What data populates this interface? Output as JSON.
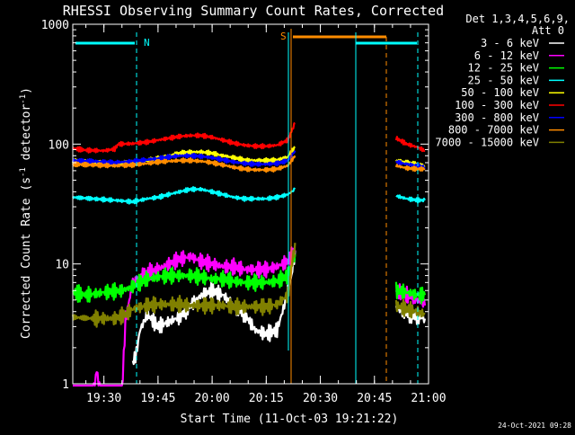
{
  "chart_data": {
    "type": "line",
    "title": "RHESSI Observing Summary Count Rates, Corrected",
    "xlabel": "Start Time (11-Oct-03 19:21:22)",
    "ylabel": "Corrected Count Rate (s⁻¹ detector⁻¹)",
    "ylabel_main": "Corrected Count Rate (s",
    "ylabel_sup1": "-1",
    "ylabel_mid": " detector",
    "ylabel_sup2": "-1",
    "ylabel_end": ")",
    "y_scale": "log",
    "ylim": [
      1,
      1000
    ],
    "xlim": [
      "19:21:22",
      "21:00"
    ],
    "x_tick_labels": [
      "19:30",
      "19:45",
      "20:00",
      "20:15",
      "20:30",
      "20:45",
      "21:00"
    ],
    "y_tick_labels": [
      "1",
      "10",
      "100",
      "1000"
    ],
    "legend_header": [
      "Det 1,3,4,5,6,9,",
      "Att 0"
    ],
    "timestamp": "24-Oct-2021 09:28",
    "markers": [
      {
        "label": "N",
        "time": "19:38"
      },
      {
        "label": "S",
        "time": "20:23"
      }
    ],
    "series": [
      {
        "name": "3 - 6 keV",
        "color": "#ffffff",
        "values": [
          [
            "19:38",
            1.5
          ],
          [
            "19:39",
            1.8
          ],
          [
            "19:40",
            2.8
          ],
          [
            "19:42",
            3.8
          ],
          [
            "19:45",
            3.0
          ],
          [
            "19:48",
            3.3
          ],
          [
            "19:51",
            3.6
          ],
          [
            "19:54",
            4.5
          ],
          [
            "19:57",
            5.5
          ],
          [
            "20:00",
            6.0
          ],
          [
            "20:03",
            5.5
          ],
          [
            "20:06",
            4.5
          ],
          [
            "20:09",
            3.8
          ],
          [
            "20:12",
            2.8
          ],
          [
            "20:15",
            2.6
          ],
          [
            "20:18",
            2.8
          ],
          [
            "20:20",
            4.5
          ],
          [
            "20:22",
            8.0
          ],
          [
            "20:23",
            13.0
          ],
          [
            "20:51",
            4.3
          ],
          [
            "20:54",
            3.8
          ],
          [
            "20:57",
            3.6
          ],
          [
            "20:59",
            3.5
          ]
        ]
      },
      {
        "name": "6 - 12 keV",
        "color": "#ff00ff",
        "values": [
          [
            "19:21:22",
            0.8
          ],
          [
            "19:27",
            0.8
          ],
          [
            "19:28",
            1.3
          ],
          [
            "19:29",
            0.8
          ],
          [
            "19:35",
            0.8
          ],
          [
            "19:36",
            3.5
          ],
          [
            "19:38",
            7.0
          ],
          [
            "19:42",
            8.5
          ],
          [
            "19:45",
            9.0
          ],
          [
            "19:48",
            10.0
          ],
          [
            "19:51",
            11.0
          ],
          [
            "19:54",
            11.5
          ],
          [
            "19:57",
            10.5
          ],
          [
            "20:00",
            10.0
          ],
          [
            "20:03",
            9.5
          ],
          [
            "20:06",
            9.5
          ],
          [
            "20:09",
            9.0
          ],
          [
            "20:12",
            9.0
          ],
          [
            "20:15",
            9.0
          ],
          [
            "20:18",
            9.5
          ],
          [
            "20:21",
            10.5
          ],
          [
            "20:23",
            13.0
          ],
          [
            "20:51",
            6.0
          ],
          [
            "20:54",
            5.5
          ],
          [
            "20:57",
            5.0
          ],
          [
            "20:59",
            4.5
          ]
        ]
      },
      {
        "name": "12 - 25 keV",
        "color": "#00ff00",
        "values": [
          [
            "19:21:22",
            5.8
          ],
          [
            "19:25",
            5.5
          ],
          [
            "19:30",
            5.8
          ],
          [
            "19:35",
            6.0
          ],
          [
            "19:38",
            6.5
          ],
          [
            "19:42",
            7.5
          ],
          [
            "19:45",
            7.8
          ],
          [
            "19:48",
            8.0
          ],
          [
            "19:51",
            8.0
          ],
          [
            "19:54",
            8.0
          ],
          [
            "19:57",
            7.8
          ],
          [
            "20:00",
            7.5
          ],
          [
            "20:03",
            7.5
          ],
          [
            "20:06",
            7.2
          ],
          [
            "20:09",
            7.0
          ],
          [
            "20:12",
            7.0
          ],
          [
            "20:15",
            7.0
          ],
          [
            "20:18",
            7.2
          ],
          [
            "20:21",
            8.0
          ],
          [
            "20:23",
            12.0
          ],
          [
            "20:51",
            6.0
          ],
          [
            "20:54",
            5.8
          ],
          [
            "20:57",
            5.5
          ],
          [
            "20:59",
            5.5
          ]
        ]
      },
      {
        "name": "25 - 50 keV",
        "color": "#00ffff",
        "values": [
          [
            "19:21:22",
            36
          ],
          [
            "19:27",
            35
          ],
          [
            "19:33",
            34
          ],
          [
            "19:38",
            33
          ],
          [
            "19:42",
            35
          ],
          [
            "19:45",
            36
          ],
          [
            "19:48",
            38
          ],
          [
            "19:51",
            40
          ],
          [
            "19:54",
            42
          ],
          [
            "19:57",
            42
          ],
          [
            "20:00",
            40
          ],
          [
            "20:03",
            38
          ],
          [
            "20:06",
            36
          ],
          [
            "20:09",
            35
          ],
          [
            "20:12",
            35
          ],
          [
            "20:15",
            35
          ],
          [
            "20:18",
            36
          ],
          [
            "20:21",
            38
          ],
          [
            "20:23",
            42
          ],
          [
            "20:51",
            37
          ],
          [
            "20:54",
            35
          ],
          [
            "20:57",
            34
          ],
          [
            "20:59",
            34
          ]
        ]
      },
      {
        "name": "50 - 100 keV",
        "color": "#ffff00",
        "values": [
          [
            "19:21:22",
            72
          ],
          [
            "19:27",
            70
          ],
          [
            "19:33",
            69
          ],
          [
            "19:38",
            70
          ],
          [
            "19:42",
            73
          ],
          [
            "19:45",
            76
          ],
          [
            "19:48",
            80
          ],
          [
            "19:51",
            84
          ],
          [
            "19:54",
            86
          ],
          [
            "19:57",
            86
          ],
          [
            "20:00",
            84
          ],
          [
            "20:03",
            80
          ],
          [
            "20:06",
            77
          ],
          [
            "20:09",
            74
          ],
          [
            "20:12",
            73
          ],
          [
            "20:15",
            73
          ],
          [
            "20:18",
            74
          ],
          [
            "20:21",
            78
          ],
          [
            "20:23",
            95
          ],
          [
            "20:51",
            73
          ],
          [
            "20:54",
            70
          ],
          [
            "20:57",
            68
          ],
          [
            "20:59",
            66
          ]
        ]
      },
      {
        "name": "100 - 300 keV",
        "color": "#ff0000",
        "values": [
          [
            "19:21:22",
            92
          ],
          [
            "19:25",
            89
          ],
          [
            "19:30",
            88
          ],
          [
            "19:33",
            91
          ],
          [
            "19:34",
            100
          ],
          [
            "19:38",
            101
          ],
          [
            "19:42",
            104
          ],
          [
            "19:45",
            108
          ],
          [
            "19:48",
            112
          ],
          [
            "19:51",
            116
          ],
          [
            "19:54",
            118
          ],
          [
            "19:57",
            118
          ],
          [
            "20:00",
            114
          ],
          [
            "20:03",
            108
          ],
          [
            "20:06",
            102
          ],
          [
            "20:09",
            98
          ],
          [
            "20:12",
            96
          ],
          [
            "20:15",
            96
          ],
          [
            "20:18",
            98
          ],
          [
            "20:21",
            108
          ],
          [
            "20:23",
            150
          ],
          [
            "20:51",
            112
          ],
          [
            "20:54",
            100
          ],
          [
            "20:57",
            94
          ],
          [
            "20:59",
            88
          ]
        ]
      },
      {
        "name": "300 - 800 keV",
        "color": "#0000ff",
        "values": [
          [
            "19:21:22",
            73
          ],
          [
            "19:27",
            72
          ],
          [
            "19:33",
            70
          ],
          [
            "19:38",
            72
          ],
          [
            "19:42",
            74
          ],
          [
            "19:45",
            76
          ],
          [
            "19:48",
            78
          ],
          [
            "19:51",
            80
          ],
          [
            "19:54",
            80
          ],
          [
            "19:57",
            79
          ],
          [
            "20:00",
            77
          ],
          [
            "20:03",
            74
          ],
          [
            "20:06",
            71
          ],
          [
            "20:09",
            69
          ],
          [
            "20:12",
            68
          ],
          [
            "20:15",
            68
          ],
          [
            "20:18",
            69
          ],
          [
            "20:21",
            73
          ],
          [
            "20:23",
            88
          ],
          [
            "20:51",
            71
          ],
          [
            "20:54",
            68
          ],
          [
            "20:57",
            66
          ],
          [
            "20:59",
            64
          ]
        ]
      },
      {
        "name": "800 - 7000 keV",
        "color": "#ff8c00",
        "values": [
          [
            "19:21:22",
            68
          ],
          [
            "19:27",
            67
          ],
          [
            "19:33",
            66
          ],
          [
            "19:38",
            67
          ],
          [
            "19:42",
            69
          ],
          [
            "19:45",
            71
          ],
          [
            "19:48",
            72
          ],
          [
            "19:51",
            73
          ],
          [
            "19:54",
            73
          ],
          [
            "19:57",
            72
          ],
          [
            "20:00",
            70
          ],
          [
            "20:03",
            67
          ],
          [
            "20:06",
            64
          ],
          [
            "20:09",
            62
          ],
          [
            "20:12",
            61
          ],
          [
            "20:15",
            61
          ],
          [
            "20:18",
            62
          ],
          [
            "20:21",
            66
          ],
          [
            "20:23",
            80
          ],
          [
            "20:51",
            66
          ],
          [
            "20:54",
            63
          ],
          [
            "20:57",
            62
          ],
          [
            "20:59",
            62
          ]
        ]
      },
      {
        "name": "7000 - 15000 keV",
        "color": "#808000",
        "values": [
          [
            "19:21:22",
            3.6
          ],
          [
            "19:27",
            3.5
          ],
          [
            "19:33",
            3.5
          ],
          [
            "19:36",
            3.8
          ],
          [
            "19:38",
            4.2
          ],
          [
            "19:42",
            4.5
          ],
          [
            "19:45",
            4.6
          ],
          [
            "19:48",
            4.6
          ],
          [
            "19:51",
            4.6
          ],
          [
            "19:54",
            4.5
          ],
          [
            "19:57",
            4.5
          ],
          [
            "20:00",
            4.5
          ],
          [
            "20:03",
            4.5
          ],
          [
            "20:06",
            4.4
          ],
          [
            "20:09",
            4.4
          ],
          [
            "20:12",
            4.4
          ],
          [
            "20:15",
            4.4
          ],
          [
            "20:18",
            4.6
          ],
          [
            "20:21",
            5.5
          ],
          [
            "20:23",
            15.0
          ],
          [
            "20:51",
            4.5
          ],
          [
            "20:54",
            4.2
          ],
          [
            "20:57",
            4.0
          ],
          [
            "20:59",
            3.8
          ]
        ]
      }
    ]
  }
}
